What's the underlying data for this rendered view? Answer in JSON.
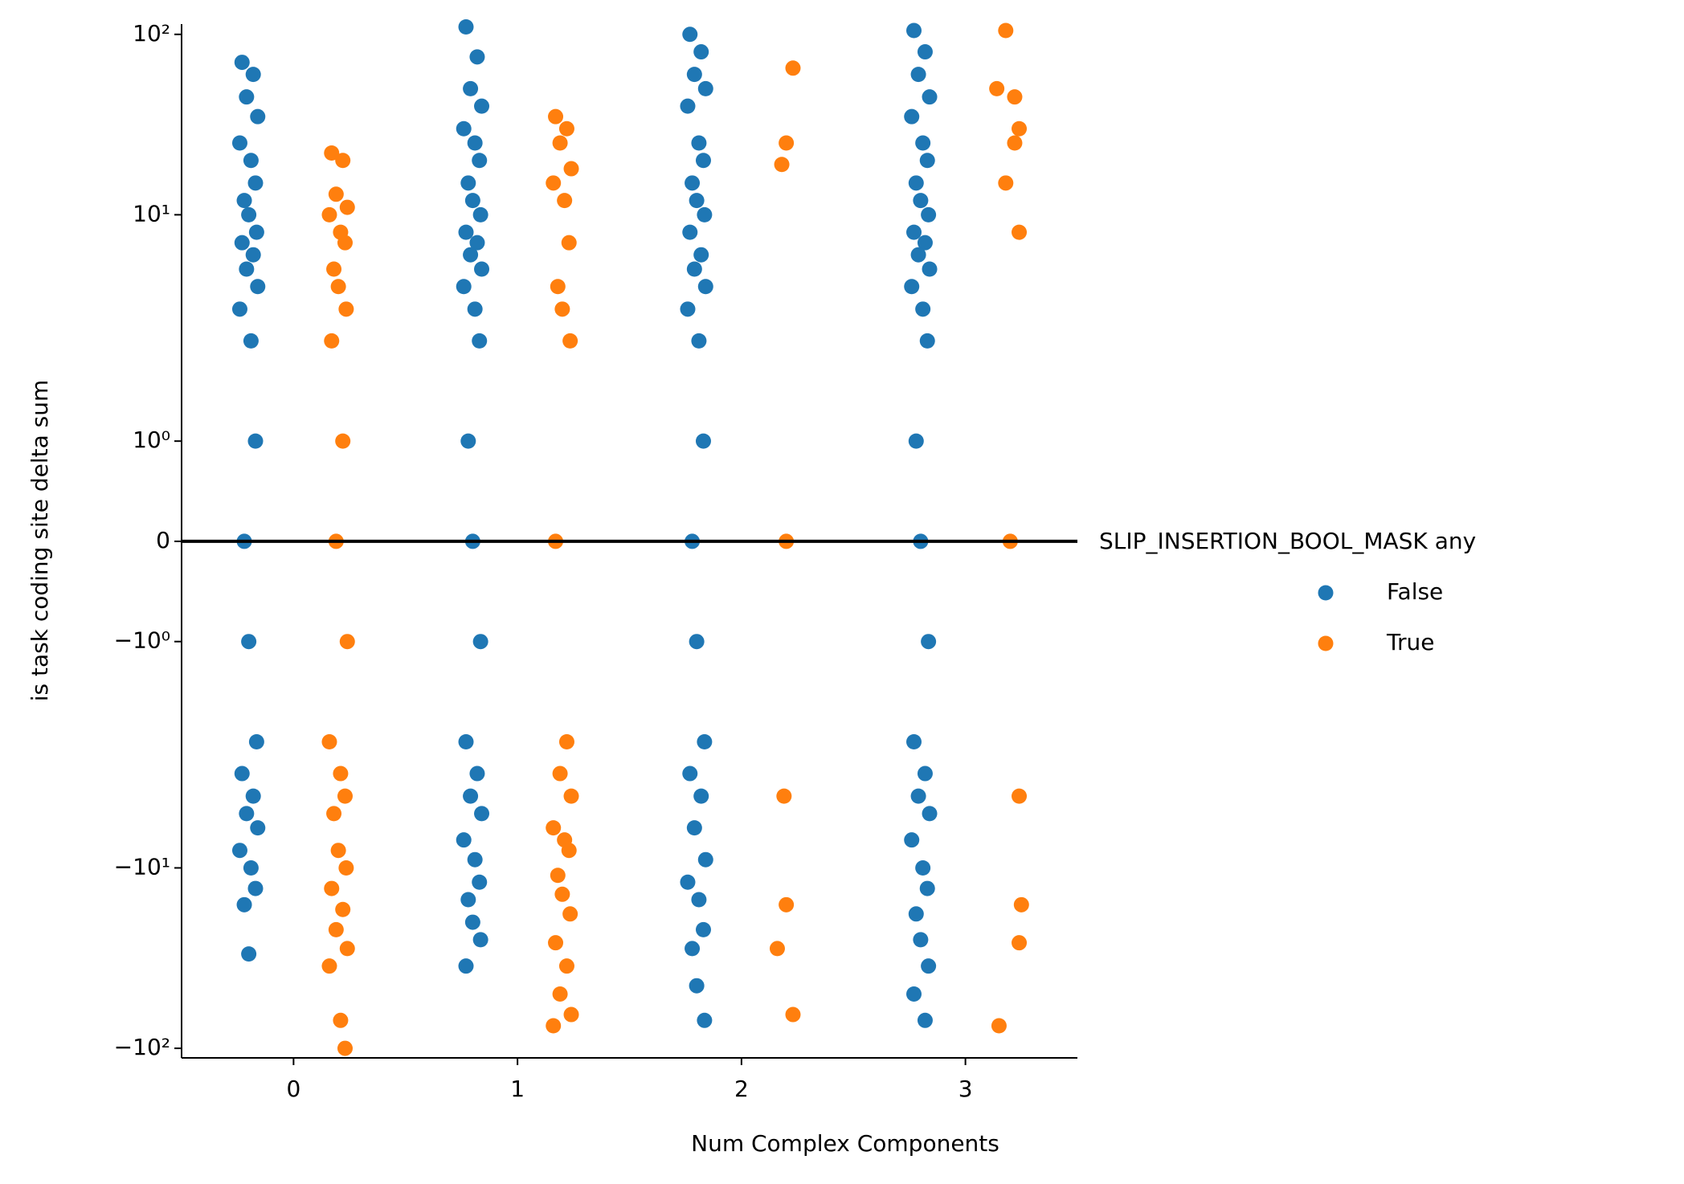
{
  "chart_data": {
    "type": "strip",
    "xlabel": "Num Complex Components",
    "ylabel": "is task coding site delta sum",
    "xlim": [
      -0.5,
      3.5
    ],
    "xticks": [
      0,
      1,
      2,
      3
    ],
    "yscale": "symlog",
    "linthresh": 2,
    "ylim": [
      -113,
      114
    ],
    "yticks": [
      {
        "value": -100,
        "label": "−10²"
      },
      {
        "value": -10,
        "label": "−10¹"
      },
      {
        "value": -1,
        "label": "−10⁰"
      },
      0,
      {
        "value": 1,
        "label": "10⁰"
      },
      {
        "value": 10,
        "label": "10¹"
      },
      {
        "value": 100,
        "label": "10²"
      }
    ],
    "hline": 0,
    "legend_title": "SLIP_INSERTION_BOOL_MASK any",
    "series": [
      {
        "name": "False",
        "color": "#1f77b4",
        "x": [
          -0.23,
          -0.18,
          -0.21,
          -0.16,
          -0.24,
          -0.19,
          -0.17,
          -0.22,
          -0.2,
          -0.165,
          -0.23,
          -0.18,
          -0.21,
          -0.16,
          -0.24,
          -0.19,
          -0.17,
          -0.22,
          -0.2,
          -0.165,
          -0.23,
          -0.18,
          -0.21,
          -0.16,
          -0.24,
          -0.19,
          -0.17,
          -0.22,
          -0.2,
          0.77,
          0.82,
          0.79,
          0.84,
          0.76,
          0.81,
          0.83,
          0.78,
          0.8,
          0.835,
          0.77,
          0.82,
          0.79,
          0.84,
          0.76,
          0.81,
          0.83,
          0.78,
          0.8,
          0.835,
          0.77,
          0.82,
          0.79,
          0.84,
          0.76,
          0.81,
          0.83,
          0.78,
          0.8,
          0.835,
          0.77,
          1.77,
          1.82,
          1.79,
          1.84,
          1.76,
          1.81,
          1.83,
          1.78,
          1.8,
          1.835,
          1.77,
          1.82,
          1.79,
          1.84,
          1.76,
          1.81,
          1.83,
          1.78,
          1.8,
          1.835,
          1.77,
          1.82,
          1.79,
          1.84,
          1.76,
          1.81,
          1.83,
          1.78,
          1.8,
          1.835,
          2.77,
          2.82,
          2.79,
          2.84,
          2.76,
          2.81,
          2.83,
          2.78,
          2.8,
          2.835,
          2.77,
          2.82,
          2.79,
          2.84,
          2.76,
          2.81,
          2.83,
          2.78,
          2.8,
          2.835,
          2.77,
          2.82,
          2.79,
          2.84,
          2.76,
          2.81,
          2.83,
          2.78,
          2.8,
          2.835,
          2.77,
          2.82
        ],
        "values": [
          70,
          60,
          45,
          35,
          25,
          20,
          15,
          12,
          10,
          8,
          7,
          6,
          5,
          4,
          3,
          2,
          1,
          0,
          -1,
          -2,
          -3,
          -4,
          -5,
          -6,
          -8,
          -10,
          -13,
          -16,
          -30,
          110,
          75,
          50,
          40,
          30,
          25,
          20,
          15,
          12,
          10,
          8,
          7,
          6,
          5,
          4,
          3,
          2,
          1,
          0,
          -1,
          -2,
          -3,
          -4,
          -5,
          -7,
          -9,
          -12,
          -15,
          -20,
          -25,
          -35,
          100,
          80,
          60,
          50,
          40,
          25,
          20,
          15,
          12,
          10,
          8,
          6,
          5,
          4,
          3,
          2,
          1,
          0,
          -1,
          -2,
          -3,
          -4,
          -6,
          -9,
          -12,
          -15,
          -22,
          -28,
          -45,
          -70,
          105,
          80,
          60,
          45,
          35,
          25,
          20,
          15,
          12,
          10,
          8,
          7,
          6,
          5,
          4,
          3,
          2,
          1,
          0,
          -1,
          -2,
          -3,
          -4,
          -5,
          -7,
          -10,
          -13,
          -18,
          -25,
          -35,
          -50,
          -70
        ]
      },
      {
        "name": "True",
        "color": "#ff7f0e",
        "x": [
          0.17,
          0.22,
          0.19,
          0.24,
          0.16,
          0.21,
          0.23,
          0.18,
          0.2,
          0.235,
          0.17,
          0.22,
          0.19,
          0.24,
          0.16,
          0.21,
          0.23,
          0.18,
          0.2,
          0.235,
          0.17,
          0.22,
          0.19,
          0.24,
          0.16,
          0.21,
          0.23,
          1.17,
          1.22,
          1.19,
          1.24,
          1.16,
          1.21,
          1.23,
          1.18,
          1.2,
          1.235,
          1.17,
          1.22,
          1.19,
          1.24,
          1.16,
          1.21,
          1.23,
          1.18,
          1.2,
          1.235,
          1.17,
          1.22,
          1.19,
          1.24,
          1.16,
          2.23,
          2.2,
          2.18,
          2.2,
          2.19,
          2.2,
          2.16,
          2.23,
          3.18,
          3.14,
          3.22,
          3.24,
          3.22,
          3.18,
          3.24,
          3.2,
          3.24,
          3.25,
          3.24,
          3.15
        ],
        "values": [
          22,
          20,
          13,
          11,
          10,
          8,
          7,
          5,
          4,
          3,
          2,
          1,
          0,
          -1,
          -2,
          -3,
          -4,
          -5,
          -8,
          -10,
          -13,
          -17,
          -22,
          -28,
          -35,
          -70,
          -100,
          35,
          30,
          25,
          18,
          15,
          12,
          7,
          4,
          3,
          2,
          0,
          -2,
          -3,
          -4,
          -6,
          -7,
          -8,
          -11,
          -14,
          -18,
          -26,
          -35,
          -50,
          -65,
          -75,
          65,
          25,
          19,
          0,
          -4,
          -16,
          -28,
          -65,
          105,
          50,
          45,
          30,
          25,
          15,
          8,
          0,
          -4,
          -16,
          -26,
          -75
        ]
      }
    ]
  }
}
